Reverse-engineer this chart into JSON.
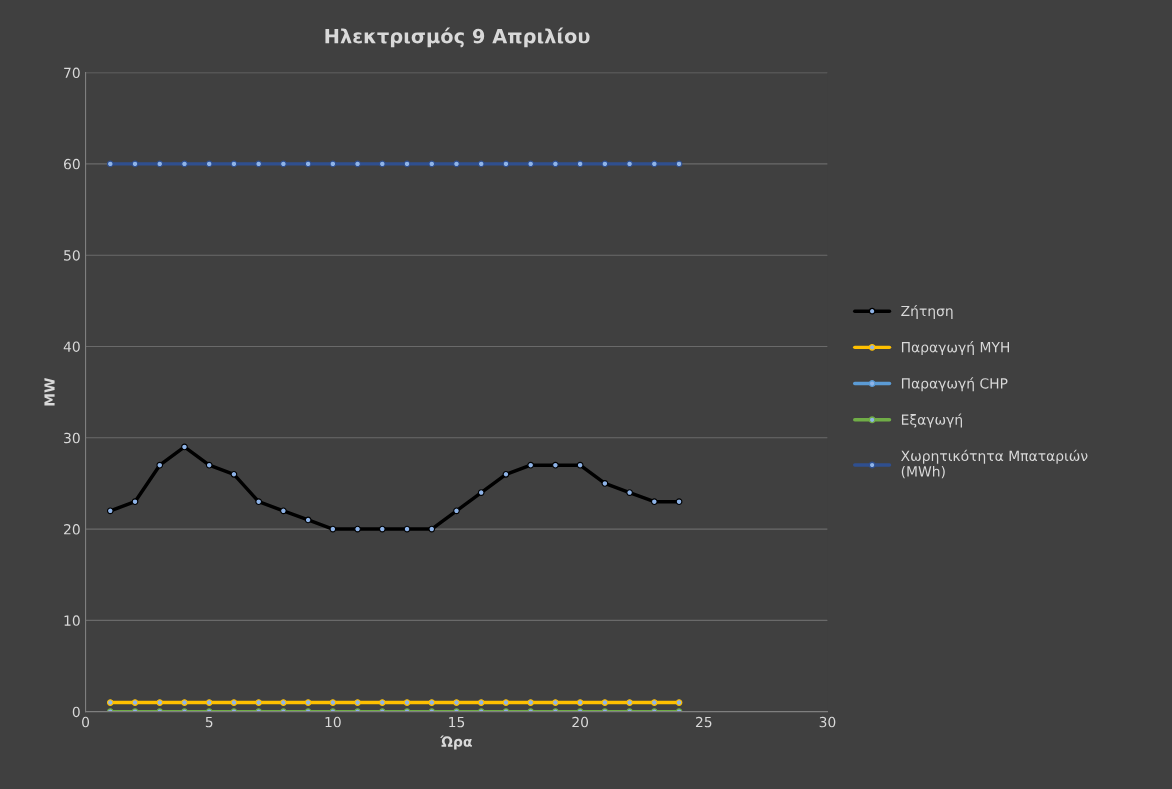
{
  "chart_data": {
    "type": "line",
    "title": "Ηλεκτρισμός 9 Απριλίου",
    "xlabel": "Ώρα",
    "ylabel": "MW",
    "x": [
      1,
      2,
      3,
      4,
      5,
      6,
      7,
      8,
      9,
      10,
      11,
      12,
      13,
      14,
      15,
      16,
      17,
      18,
      19,
      20,
      21,
      22,
      23,
      24
    ],
    "series": [
      {
        "name": "Ζήτηση",
        "color": "#000000",
        "values": [
          22,
          23,
          27,
          29,
          27,
          26,
          23,
          22,
          21,
          20,
          20,
          20,
          20,
          20,
          22,
          24,
          26,
          27,
          27,
          27,
          25,
          24,
          23,
          23
        ]
      },
      {
        "name": "Παραγωγή ΜΥΗ",
        "color": "#ffc000",
        "values": [
          1,
          1,
          1,
          1,
          1,
          1,
          1,
          1,
          1,
          1,
          1,
          1,
          1,
          1,
          1,
          1,
          1,
          1,
          1,
          1,
          1,
          1,
          1,
          1
        ]
      },
      {
        "name": "Παραγωγή CHP",
        "color": "#5b9bd5",
        "values": [
          null,
          null,
          null,
          null,
          null,
          null,
          null,
          null,
          null,
          null,
          null,
          null,
          null,
          null,
          null,
          null,
          null,
          null,
          null,
          null,
          null,
          null,
          null,
          null
        ]
      },
      {
        "name": "Εξαγωγή",
        "color": "#70ad47",
        "values": [
          0,
          0,
          0,
          0,
          0,
          0,
          0,
          0,
          0,
          0,
          0,
          0,
          0,
          0,
          0,
          0,
          0,
          0,
          0,
          0,
          0,
          0,
          0,
          0
        ]
      },
      {
        "name": "Χωρητικότητα Μπαταριών (MWh)",
        "color": "#2f4f8f",
        "values": [
          60,
          60,
          60,
          60,
          60,
          60,
          60,
          60,
          60,
          60,
          60,
          60,
          60,
          60,
          60,
          60,
          60,
          60,
          60,
          60,
          60,
          60,
          60,
          60
        ]
      }
    ],
    "xlim": [
      0,
      30
    ],
    "xticks": [
      0,
      5,
      10,
      15,
      20,
      25,
      30
    ],
    "ylim": [
      0,
      70
    ],
    "yticks": [
      0,
      10,
      20,
      30,
      40,
      50,
      60,
      70
    ],
    "grid": "y",
    "legend": "right",
    "marker": "circle",
    "line_style": "solid"
  }
}
